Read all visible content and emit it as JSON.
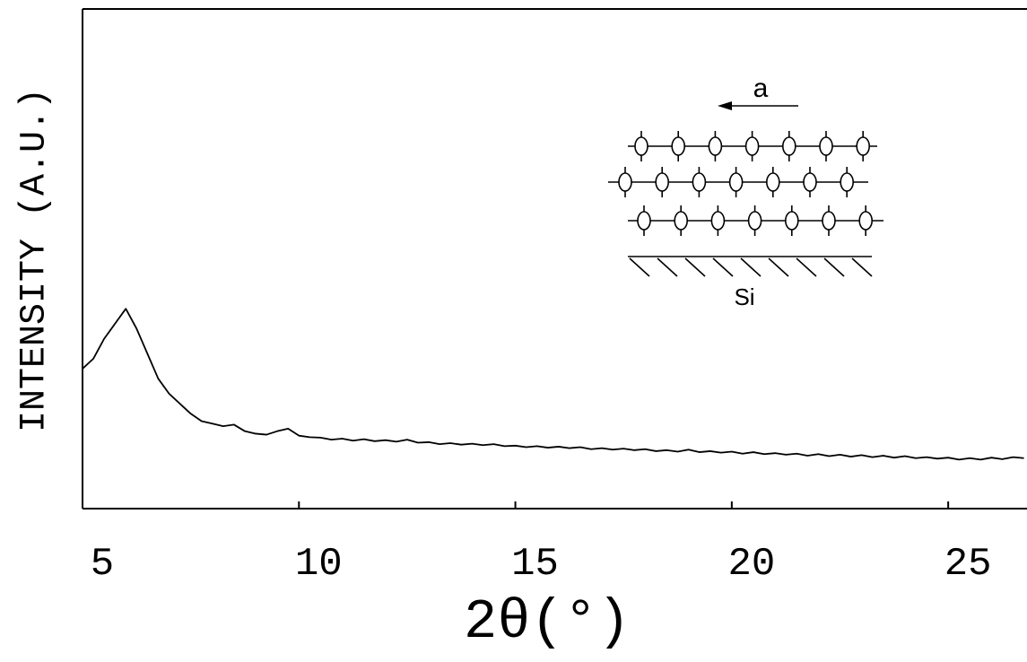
{
  "chart_data": {
    "type": "line",
    "x_label": "2θ(°)",
    "y_label": "INTENSITY (A.U.)",
    "annotations": [
      "a",
      "Si"
    ],
    "xlim": [
      5,
      26.8
    ],
    "xticks": [
      5,
      10,
      15,
      20,
      25
    ],
    "ylim": [
      0,
      100
    ],
    "color": "#000000",
    "x": [
      5.0,
      5.25,
      5.5,
      5.75,
      6.0,
      6.25,
      6.5,
      6.75,
      7.0,
      7.25,
      7.5,
      7.75,
      8.0,
      8.25,
      8.5,
      8.75,
      9.0,
      9.25,
      9.5,
      9.75,
      10.0,
      10.25,
      10.5,
      10.75,
      11.0,
      11.25,
      11.5,
      11.75,
      12.0,
      12.25,
      12.5,
      12.75,
      13.0,
      13.25,
      13.5,
      13.75,
      14.0,
      14.25,
      14.5,
      14.75,
      15.0,
      15.25,
      15.5,
      15.75,
      16.0,
      16.25,
      16.5,
      16.75,
      17.0,
      17.25,
      17.5,
      17.75,
      18.0,
      18.25,
      18.5,
      18.75,
      19.0,
      19.25,
      19.5,
      19.75,
      20.0,
      20.25,
      20.5,
      20.75,
      21.0,
      21.25,
      21.5,
      21.75,
      22.0,
      22.25,
      22.5,
      22.75,
      23.0,
      23.25,
      23.5,
      23.75,
      24.0,
      24.25,
      24.5,
      24.75,
      25.0,
      25.25,
      25.5,
      25.75,
      26.0,
      26.25,
      26.5,
      26.75
    ],
    "values": [
      28,
      30,
      34,
      37,
      40,
      36,
      31,
      26,
      23,
      21,
      19,
      17.5,
      17,
      16.5,
      16.8,
      15.5,
      15,
      14.8,
      15.5,
      16,
      14.6,
      14.3,
      14.2,
      13.8,
      14,
      13.6,
      13.9,
      13.5,
      13.7,
      13.4,
      13.8,
      13.2,
      13.3,
      12.9,
      13.1,
      12.8,
      13,
      12.7,
      12.9,
      12.5,
      12.6,
      12.3,
      12.5,
      12.2,
      12.4,
      12.1,
      12.3,
      11.9,
      12.1,
      11.8,
      12.0,
      11.7,
      11.9,
      11.5,
      11.7,
      11.4,
      11.8,
      11.3,
      11.5,
      11.2,
      11.4,
      11.0,
      11.3,
      10.9,
      11.1,
      10.8,
      11.0,
      10.6,
      10.9,
      10.5,
      10.8,
      10.4,
      10.7,
      10.3,
      10.6,
      10.2,
      10.5,
      10.1,
      10.3,
      10.0,
      10.2,
      9.8,
      10.1,
      9.8,
      10.2,
      9.9,
      10.3,
      10.1
    ]
  }
}
